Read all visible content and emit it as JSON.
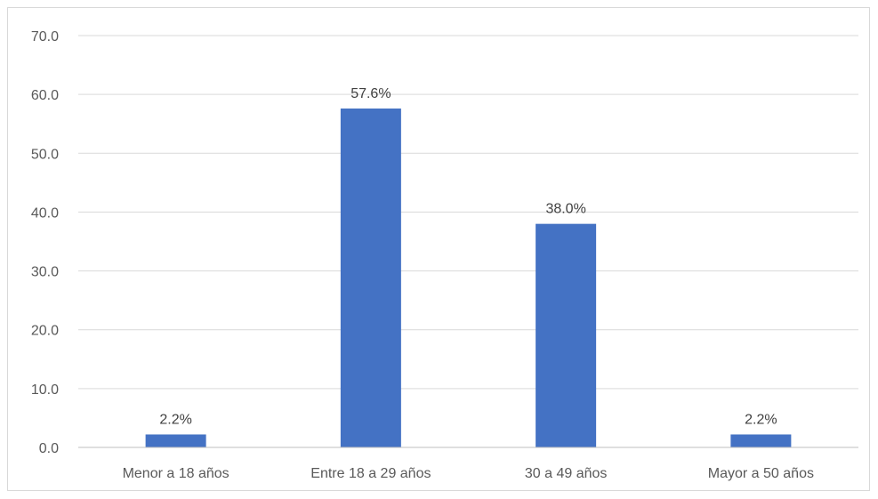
{
  "chart_data": {
    "type": "bar",
    "title": "",
    "xlabel": "",
    "ylabel": "",
    "categories": [
      "Menor a 18 años",
      "Entre 18 a 29 años",
      "30 a 49 años",
      "Mayor a 50 años"
    ],
    "values": [
      2.2,
      57.6,
      38.0,
      2.2
    ],
    "data_labels": [
      "2.2%",
      "57.6%",
      "38.0%",
      "2.2%"
    ],
    "ylim": [
      0,
      70
    ],
    "yticks": [
      0,
      10,
      20,
      30,
      40,
      50,
      60,
      70
    ],
    "ytick_labels": [
      "0.0",
      "10.0",
      "20.0",
      "30.0",
      "40.0",
      "50.0",
      "60.0",
      "70.0"
    ],
    "grid": true,
    "legend": "none",
    "colors": {
      "bar": "#4472c4",
      "grid": "#d9d9d9",
      "axis": "#bfbfbf"
    }
  }
}
